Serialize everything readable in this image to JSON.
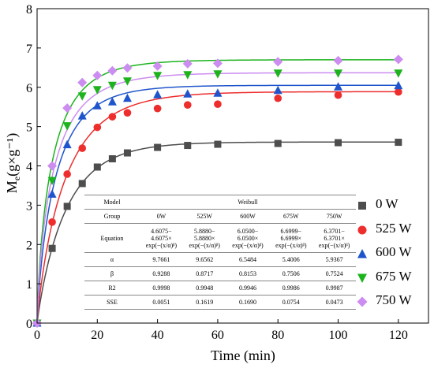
{
  "chart_data": {
    "type": "scatter",
    "title": "",
    "xlabel": "Time (min)",
    "ylabel": {
      "main": "M",
      "sub": "e",
      "units": "(g×g⁻¹)"
    },
    "xlim": [
      0,
      130
    ],
    "ylim": [
      0,
      8
    ],
    "xticks": [
      0,
      20,
      40,
      60,
      80,
      100,
      120
    ],
    "yticks": [
      0,
      1,
      2,
      3,
      4,
      5,
      6,
      7,
      8
    ],
    "grid": false,
    "legend_position": "bottom-right",
    "series": [
      {
        "name": "0 W",
        "marker": "square",
        "color": "#4d4d4d",
        "x": [
          0,
          5,
          10,
          15,
          20,
          25,
          30,
          40,
          50,
          60,
          80,
          100,
          120
        ],
        "y": [
          0,
          1.9,
          2.97,
          3.55,
          3.97,
          4.18,
          4.33,
          4.47,
          4.52,
          4.55,
          4.57,
          4.59,
          4.6
        ],
        "fit": {
          "M0": 4.6075,
          "alpha": 9.7661,
          "beta": 0.9288
        }
      },
      {
        "name": "525 W",
        "marker": "circle",
        "color": "#ee2d2d",
        "x": [
          0,
          5,
          10,
          15,
          20,
          25,
          30,
          40,
          50,
          60,
          80,
          100,
          120
        ],
        "y": [
          0,
          2.57,
          3.79,
          4.45,
          4.98,
          5.25,
          5.35,
          5.46,
          5.55,
          5.57,
          5.72,
          5.8,
          5.88
        ],
        "fit": {
          "M0": 5.888,
          "alpha": 9.6562,
          "beta": 0.8717
        }
      },
      {
        "name": "600 W",
        "marker": "triangle-up",
        "color": "#1f55cc",
        "x": [
          0,
          5,
          10,
          15,
          20,
          25,
          30,
          40,
          50,
          60,
          80,
          100,
          120
        ],
        "y": [
          0,
          3.28,
          4.54,
          5.27,
          5.53,
          5.63,
          5.72,
          5.81,
          5.83,
          5.85,
          5.92,
          6.01,
          6.04
        ],
        "fit": {
          "M0": 6.05,
          "alpha": 6.5484,
          "beta": 0.8153
        }
      },
      {
        "name": "675 W",
        "marker": "triangle-down",
        "color": "#1db31d",
        "x": [
          0,
          5,
          10,
          15,
          20,
          25,
          30,
          40,
          50,
          60,
          80,
          100,
          120
        ],
        "y": [
          0,
          3.63,
          5.02,
          5.78,
          5.94,
          6.05,
          6.16,
          6.3,
          6.32,
          6.34,
          6.36,
          6.36,
          6.36
        ],
        "fit": {
          "M0": 6.6999,
          "alpha": 5.4006,
          "beta": 0.7506
        }
      },
      {
        "name": "750 W",
        "marker": "diamond",
        "color": "#cc8cf0",
        "x": [
          0,
          5,
          10,
          15,
          20,
          25,
          30,
          40,
          50,
          60,
          80,
          100,
          120
        ],
        "y": [
          0,
          4.0,
          5.47,
          6.12,
          6.3,
          6.42,
          6.49,
          6.54,
          6.6,
          6.61,
          6.65,
          6.68,
          6.71
        ],
        "fit": {
          "M0": 6.3701,
          "alpha": 5.9367,
          "beta": 0.7524
        }
      }
    ],
    "table": {
      "model_label": "Model",
      "model_name": "Weibull",
      "group_label": "Group",
      "groups": [
        "0W",
        "525W",
        "600W",
        "675W",
        "750W"
      ],
      "equation_label": "Equation",
      "equations": [
        {
          "a": "4.6075−",
          "b": "4.6075×",
          "c": "exp(−(x/α)ᵝ)"
        },
        {
          "a": "5.8880−",
          "b": "5.8880×",
          "c": "exp(−(x/α)ᵝ)"
        },
        {
          "a": "6.0500−",
          "b": "6.0500×",
          "c": "exp(−(x/α)ᵝ)"
        },
        {
          "a": "6.6999−",
          "b": "6.6999×",
          "c": "exp(−(x/α)ᵝ)"
        },
        {
          "a": "6.3701−",
          "b": "6.3701×",
          "c": "exp(−(x/α)ᵝ)"
        }
      ],
      "rows": [
        {
          "label": "α",
          "values": [
            "9.7661",
            "9.6562",
            "6.5484",
            "5.4006",
            "5.9367"
          ]
        },
        {
          "label": "β",
          "values": [
            "0.9288",
            "0.8717",
            "0.8153",
            "0.7506",
            "0.7524"
          ]
        },
        {
          "label": "R2",
          "values": [
            "0.9998",
            "0.9948",
            "0.9946",
            "0.9986",
            "0.9987"
          ]
        },
        {
          "label": "SSE",
          "values": [
            "0.0051",
            "0.1619",
            "0.1690",
            "0.0754",
            "0.0473"
          ]
        }
      ]
    }
  }
}
